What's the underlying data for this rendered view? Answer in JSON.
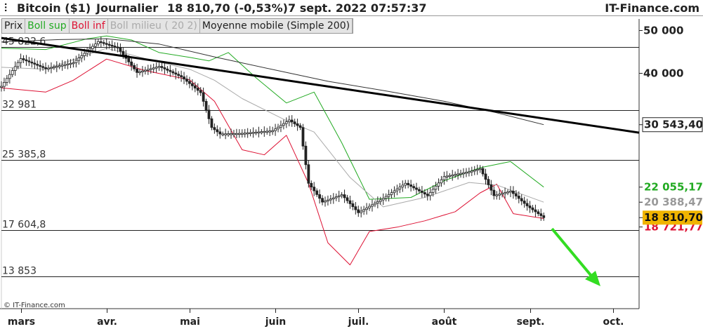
{
  "header": {
    "title": "Bitcoin ($1)",
    "period": "Journalier",
    "quote": "18 810,70 (-0,53%)",
    "datetime": "7 sept. 2022 07:57:37",
    "brand": "IT-Finance.com"
  },
  "legend": {
    "items": [
      {
        "label": "Prix",
        "color": "#222222"
      },
      {
        "label": "Boll sup",
        "color": "#22aa22"
      },
      {
        "label": "Boll inf",
        "color": "#dd1133"
      },
      {
        "label": "Boll milieu ( 20 2)",
        "color": "#aaaaaa"
      },
      {
        "label": "Moyenne mobile (Simple 200)",
        "color": "#222222"
      }
    ]
  },
  "footer": {
    "copyright": "© IT-Finance.com"
  },
  "colors": {
    "up": "#222222",
    "down": "#222222",
    "boll_sup": "#22aa22",
    "boll_inf": "#dd1133",
    "boll_mid": "#aaaaaa",
    "ma200": "#333333",
    "trend": "#000000",
    "arrow": "#33dd22",
    "price_tag": "#f0b400"
  },
  "chart_data": {
    "type": "candlestick",
    "title": "Bitcoin ($1)",
    "y_axis": {
      "scale": "log",
      "ticks": [
        50000,
        40000
      ],
      "range": [
        12500,
        52000
      ]
    },
    "x_ticks": [
      "mars",
      "avr.",
      "mai",
      "juin",
      "juil.",
      "août",
      "sept.",
      "oct."
    ],
    "levels": [
      {
        "value": 45822.6,
        "label": "45 822,6"
      },
      {
        "value": 32981,
        "label": "32 981"
      },
      {
        "value": 25385.8,
        "label": "25 385,8"
      },
      {
        "value": 17604.8,
        "label": "17 604,8"
      },
      {
        "value": 13853,
        "label": "13 853"
      }
    ],
    "right_labels": [
      {
        "value": 30543.4,
        "label": "30 543,40",
        "series": "Moyenne mobile (Simple 200)"
      },
      {
        "value": 22055.17,
        "label": "22 055,17",
        "series": "Boll sup"
      },
      {
        "value": 20388.47,
        "label": "20 388,47",
        "series": "Boll milieu ( 20 2)"
      },
      {
        "value": 18810.7,
        "label": "18 810,70",
        "series": "Prix"
      },
      {
        "value": 18721.77,
        "label": "18 721,77",
        "series": "Boll inf"
      }
    ],
    "trendline": {
      "from": {
        "date": "2022-02-22",
        "value": 48000
      },
      "to": {
        "date": "2022-10-14",
        "value": 29300
      }
    },
    "series": [
      {
        "name": "Prix",
        "kind": "close",
        "x": [
          "2022-02-22",
          "2022-03-01",
          "2022-03-10",
          "2022-03-20",
          "2022-03-29",
          "2022-04-05",
          "2022-04-12",
          "2022-04-20",
          "2022-04-28",
          "2022-05-05",
          "2022-05-09",
          "2022-05-12",
          "2022-05-20",
          "2022-05-31",
          "2022-06-06",
          "2022-06-10",
          "2022-06-13",
          "2022-06-18",
          "2022-06-25",
          "2022-07-01",
          "2022-07-10",
          "2022-07-18",
          "2022-07-26",
          "2022-08-01",
          "2022-08-10",
          "2022-08-14",
          "2022-08-19",
          "2022-08-25",
          "2022-08-31",
          "2022-09-06"
        ],
        "values": [
          37300,
          43100,
          40900,
          42200,
          47100,
          45600,
          40100,
          41400,
          39200,
          36100,
          30100,
          29100,
          29200,
          29600,
          31300,
          30100,
          22500,
          20400,
          21200,
          19300,
          20800,
          22500,
          21100,
          23300,
          23900,
          24300,
          21100,
          21600,
          20000,
          18810.7
        ]
      },
      {
        "name": "Boll sup",
        "x": [
          "2022-02-22",
          "2022-03-10",
          "2022-03-25",
          "2022-04-01",
          "2022-04-10",
          "2022-04-20",
          "2022-05-01",
          "2022-05-08",
          "2022-05-15",
          "2022-05-25",
          "2022-06-05",
          "2022-06-15",
          "2022-06-25",
          "2022-07-05",
          "2022-07-20",
          "2022-08-01",
          "2022-08-14",
          "2022-08-25",
          "2022-09-06"
        ],
        "values": [
          45500,
          45200,
          47800,
          48500,
          47500,
          44500,
          43400,
          42600,
          44500,
          39000,
          34200,
          36200,
          27800,
          20700,
          20900,
          22800,
          24400,
          25200,
          22055.17
        ]
      },
      {
        "name": "Boll inf",
        "x": [
          "2022-02-22",
          "2022-03-10",
          "2022-03-20",
          "2022-04-01",
          "2022-04-15",
          "2022-05-01",
          "2022-05-10",
          "2022-05-20",
          "2022-05-28",
          "2022-06-05",
          "2022-06-13",
          "2022-06-20",
          "2022-06-28",
          "2022-07-05",
          "2022-07-15",
          "2022-07-25",
          "2022-08-05",
          "2022-08-14",
          "2022-08-20",
          "2022-08-26",
          "2022-09-06"
        ],
        "values": [
          37000,
          36200,
          38500,
          43000,
          40500,
          38600,
          34500,
          26800,
          26100,
          28900,
          22500,
          16500,
          14700,
          17500,
          17900,
          18500,
          19400,
          21400,
          22400,
          19200,
          18721.77
        ]
      },
      {
        "name": "Boll milieu ( 20 2)",
        "x": [
          "2022-02-22",
          "2022-03-10",
          "2022-04-01",
          "2022-04-20",
          "2022-05-01",
          "2022-05-10",
          "2022-05-20",
          "2022-06-05",
          "2022-06-15",
          "2022-06-28",
          "2022-07-10",
          "2022-07-25",
          "2022-08-10",
          "2022-08-20",
          "2022-09-06"
        ],
        "values": [
          41200,
          40800,
          45500,
          42300,
          40800,
          38500,
          35000,
          31200,
          29400,
          23200,
          19900,
          20900,
          22600,
          22300,
          20388.47
        ]
      },
      {
        "name": "Moyenne mobile (Simple 200)",
        "x": [
          "2022-02-22",
          "2022-03-15",
          "2022-04-01",
          "2022-04-20",
          "2022-05-10",
          "2022-06-01",
          "2022-06-20",
          "2022-07-10",
          "2022-08-01",
          "2022-08-20",
          "2022-09-06"
        ],
        "values": [
          47000,
          47600,
          47800,
          46500,
          43500,
          40600,
          38300,
          36500,
          34500,
          32500,
          30543.4
        ]
      }
    ]
  }
}
